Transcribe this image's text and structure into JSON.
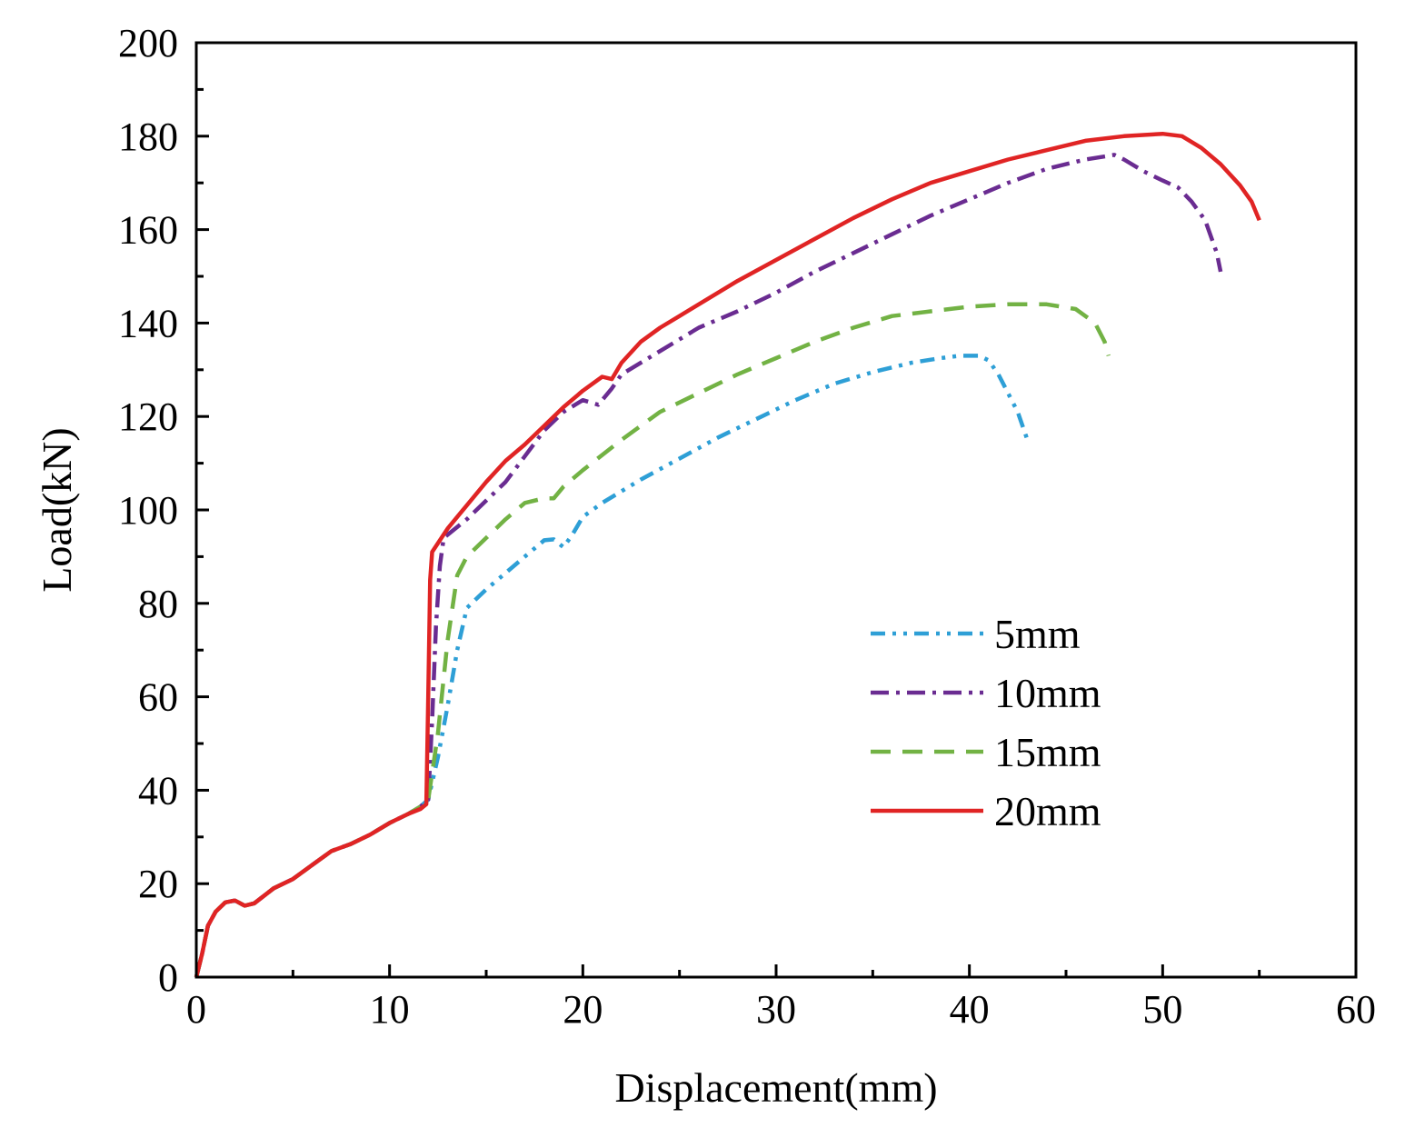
{
  "chart_data": {
    "type": "line",
    "title": "",
    "xlabel": "Displacement(mm)",
    "ylabel": "Load(kN)",
    "xlim": [
      0,
      60
    ],
    "ylim": [
      0,
      200
    ],
    "xticks": [
      0,
      10,
      20,
      30,
      40,
      50,
      60
    ],
    "yticks": [
      0,
      20,
      40,
      60,
      80,
      100,
      120,
      140,
      160,
      180,
      200
    ],
    "grid": false,
    "legend_position": "right-lower",
    "series": [
      {
        "name": "5mm",
        "color": "#2E9FD6",
        "dash": "dash-dot-dot",
        "points": [
          [
            0,
            0
          ],
          [
            0.3,
            5
          ],
          [
            0.6,
            11
          ],
          [
            1,
            14
          ],
          [
            1.5,
            16
          ],
          [
            2,
            16.4
          ],
          [
            2.5,
            15.3
          ],
          [
            3,
            15.8
          ],
          [
            4,
            19
          ],
          [
            5,
            21
          ],
          [
            6,
            24
          ],
          [
            7,
            27
          ],
          [
            8,
            28.5
          ],
          [
            9,
            30.5
          ],
          [
            10,
            33
          ],
          [
            11,
            35
          ],
          [
            11.6,
            36.5
          ],
          [
            12,
            38
          ],
          [
            12.5,
            47
          ],
          [
            13,
            58
          ],
          [
            13.5,
            70
          ],
          [
            14,
            79
          ],
          [
            15,
            83
          ],
          [
            16,
            86.5
          ],
          [
            17,
            90
          ],
          [
            18,
            93.5
          ],
          [
            18.5,
            93.7
          ],
          [
            19,
            92
          ],
          [
            19.5,
            95
          ],
          [
            20,
            98.5
          ],
          [
            21,
            101.5
          ],
          [
            22,
            104
          ],
          [
            23,
            106.5
          ],
          [
            25,
            111
          ],
          [
            27,
            115.5
          ],
          [
            29,
            119.5
          ],
          [
            31,
            123.5
          ],
          [
            33,
            127
          ],
          [
            35,
            129.5
          ],
          [
            37,
            131.5
          ],
          [
            38.5,
            132.5
          ],
          [
            39.5,
            133
          ],
          [
            40.5,
            133
          ],
          [
            41,
            132
          ],
          [
            41.5,
            129
          ],
          [
            42,
            125
          ],
          [
            42.5,
            121
          ],
          [
            43,
            115
          ]
        ]
      },
      {
        "name": "10mm",
        "color": "#6A2C91",
        "dash": "dash-dot",
        "points": [
          [
            0,
            0
          ],
          [
            0.3,
            5
          ],
          [
            0.6,
            11
          ],
          [
            1,
            14
          ],
          [
            1.5,
            16
          ],
          [
            2,
            16.4
          ],
          [
            2.5,
            15.3
          ],
          [
            3,
            15.8
          ],
          [
            4,
            19
          ],
          [
            5,
            21
          ],
          [
            6,
            24
          ],
          [
            7,
            27
          ],
          [
            8,
            28.5
          ],
          [
            9,
            30.5
          ],
          [
            10,
            33
          ],
          [
            11,
            35
          ],
          [
            11.6,
            36.5
          ],
          [
            12,
            38
          ],
          [
            12.2,
            55
          ],
          [
            12.4,
            75
          ],
          [
            12.6,
            88
          ],
          [
            12.8,
            94
          ],
          [
            14,
            98
          ],
          [
            16,
            106
          ],
          [
            18,
            117
          ],
          [
            19,
            121
          ],
          [
            20,
            123.5
          ],
          [
            20.8,
            122.5
          ],
          [
            21.5,
            126
          ],
          [
            22,
            129
          ],
          [
            24,
            134
          ],
          [
            26,
            139
          ],
          [
            28,
            142.5
          ],
          [
            30,
            146.5
          ],
          [
            32,
            151
          ],
          [
            34,
            155
          ],
          [
            36,
            159
          ],
          [
            38,
            163
          ],
          [
            40,
            166.5
          ],
          [
            42,
            170
          ],
          [
            44,
            173
          ],
          [
            46,
            175
          ],
          [
            47.5,
            176
          ],
          [
            48,
            175
          ],
          [
            49,
            172.5
          ],
          [
            50,
            170.5
          ],
          [
            50.8,
            169
          ],
          [
            51.5,
            166
          ],
          [
            52.2,
            162
          ],
          [
            52.8,
            155
          ],
          [
            53,
            151
          ]
        ]
      },
      {
        "name": "15mm",
        "color": "#72B244",
        "dash": "dash",
        "points": [
          [
            0,
            0
          ],
          [
            0.3,
            5
          ],
          [
            0.6,
            11
          ],
          [
            1,
            14
          ],
          [
            1.5,
            16
          ],
          [
            2,
            16.4
          ],
          [
            2.5,
            15.3
          ],
          [
            3,
            15.8
          ],
          [
            4,
            19
          ],
          [
            5,
            21
          ],
          [
            6,
            24
          ],
          [
            7,
            27
          ],
          [
            8,
            28.5
          ],
          [
            9,
            30.5
          ],
          [
            10,
            33
          ],
          [
            11,
            35
          ],
          [
            11.6,
            36.5
          ],
          [
            12,
            38
          ],
          [
            12.5,
            52
          ],
          [
            13,
            72
          ],
          [
            13.5,
            86
          ],
          [
            14,
            90
          ],
          [
            15,
            94
          ],
          [
            16,
            98
          ],
          [
            17,
            101.5
          ],
          [
            18,
            102.5
          ],
          [
            18.5,
            102.5
          ],
          [
            19,
            105
          ],
          [
            20,
            108.5
          ],
          [
            22,
            115
          ],
          [
            24,
            121
          ],
          [
            26,
            125
          ],
          [
            28,
            129
          ],
          [
            30,
            132.5
          ],
          [
            32,
            136
          ],
          [
            34,
            139
          ],
          [
            36,
            141.5
          ],
          [
            38,
            142.5
          ],
          [
            40,
            143.5
          ],
          [
            42,
            144
          ],
          [
            44,
            144
          ],
          [
            45.5,
            143
          ],
          [
            46.5,
            140
          ],
          [
            47,
            136
          ],
          [
            47.2,
            133
          ]
        ]
      },
      {
        "name": "20mm",
        "color": "#E02424",
        "dash": "solid",
        "points": [
          [
            0,
            0
          ],
          [
            0.3,
            5
          ],
          [
            0.6,
            11
          ],
          [
            1,
            14
          ],
          [
            1.5,
            16
          ],
          [
            2,
            16.4
          ],
          [
            2.5,
            15.3
          ],
          [
            3,
            15.8
          ],
          [
            4,
            19
          ],
          [
            5,
            21
          ],
          [
            6,
            24
          ],
          [
            7,
            27
          ],
          [
            8,
            28.5
          ],
          [
            9,
            30.5
          ],
          [
            10,
            33
          ],
          [
            11,
            35
          ],
          [
            11.6,
            36
          ],
          [
            11.9,
            37
          ],
          [
            12,
            60
          ],
          [
            12.1,
            85
          ],
          [
            12.2,
            91
          ],
          [
            13,
            96
          ],
          [
            14,
            101
          ],
          [
            15,
            106
          ],
          [
            16,
            110.5
          ],
          [
            17,
            114
          ],
          [
            18,
            118
          ],
          [
            19,
            122
          ],
          [
            20,
            125.5
          ],
          [
            21,
            128.5
          ],
          [
            21.5,
            128
          ],
          [
            22,
            131.5
          ],
          [
            23,
            136
          ],
          [
            24,
            139
          ],
          [
            25,
            141.5
          ],
          [
            26,
            144
          ],
          [
            28,
            149
          ],
          [
            30,
            153.5
          ],
          [
            32,
            158
          ],
          [
            34,
            162.5
          ],
          [
            36,
            166.5
          ],
          [
            38,
            170
          ],
          [
            40,
            172.5
          ],
          [
            42,
            175
          ],
          [
            43.5,
            176.5
          ],
          [
            44,
            177
          ],
          [
            46,
            179
          ],
          [
            48,
            180
          ],
          [
            50,
            180.5
          ],
          [
            51,
            180
          ],
          [
            52,
            177.5
          ],
          [
            53,
            174
          ],
          [
            54,
            169.5
          ],
          [
            54.6,
            166
          ],
          [
            55,
            162
          ]
        ]
      }
    ]
  }
}
